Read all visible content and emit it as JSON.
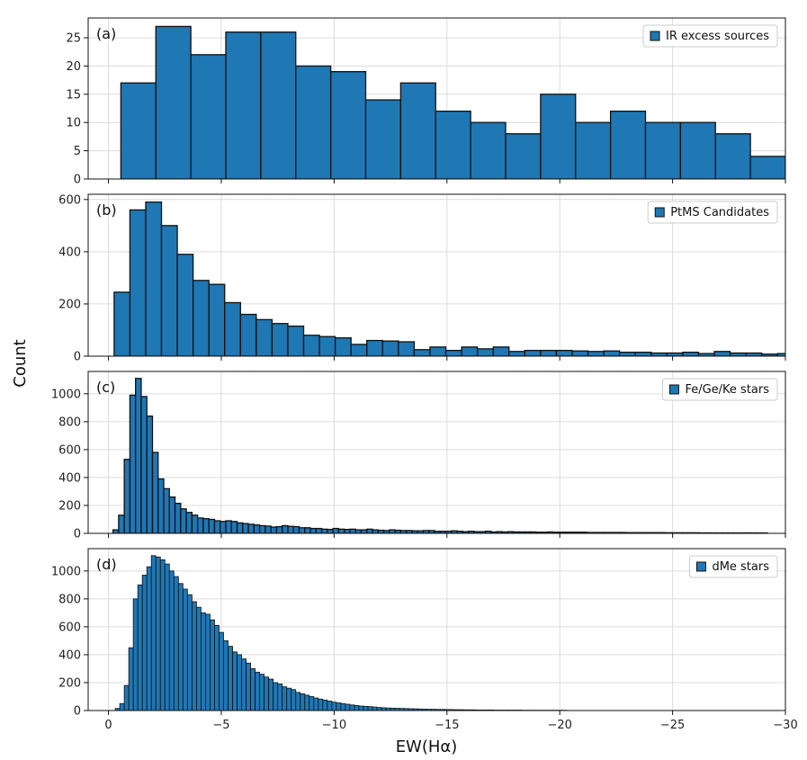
{
  "chart_data": {
    "type": "bar",
    "figure_xlabel": "EW(Hα)",
    "figure_ylabel": "Count",
    "bar_color": "#1f77b4",
    "edge_color": "#111111",
    "grid": true,
    "shared_x": {
      "xlim": [
        0.9,
        -30.0
      ],
      "ticks": [
        0,
        -5,
        -10,
        -15,
        -20,
        -25,
        -30
      ],
      "tick_labels": [
        "0",
        "−5",
        "−10",
        "−15",
        "−20",
        "−25",
        "−30"
      ]
    },
    "panels": [
      {
        "id": "a",
        "label": "(a)",
        "legend": "IR excess sources",
        "legend_position": "top-right",
        "ylim": [
          0,
          28.5
        ],
        "yticks": [
          0,
          5,
          10,
          15,
          20,
          25
        ],
        "bin_start": -0.55,
        "bin_width": -1.55,
        "values": [
          17,
          27,
          22,
          26,
          26,
          20,
          19,
          14,
          17,
          12,
          10,
          8,
          15,
          10,
          12,
          10,
          10,
          8,
          4
        ]
      },
      {
        "id": "b",
        "label": "(b)",
        "legend": "PtMS Candidates",
        "legend_position": "top-right",
        "ylim": [
          0,
          620
        ],
        "yticks": [
          0,
          200,
          400,
          600
        ],
        "bin_start": -0.25,
        "bin_width": -0.7,
        "values": [
          245,
          560,
          590,
          500,
          390,
          290,
          275,
          205,
          160,
          140,
          125,
          115,
          80,
          75,
          70,
          45,
          60,
          58,
          55,
          25,
          35,
          22,
          35,
          28,
          35,
          18,
          22,
          22,
          22,
          20,
          18,
          20,
          15,
          15,
          12,
          12,
          15,
          10,
          18,
          12,
          12,
          8,
          10
        ]
      },
      {
        "id": "c",
        "label": "(c)",
        "legend": "Fe/Ge/Ke stars",
        "legend_position": "top-right",
        "ylim": [
          0,
          1160
        ],
        "yticks": [
          0,
          200,
          400,
          600,
          800,
          1000
        ],
        "bin_start": -0.2,
        "bin_width": -0.25,
        "values": [
          25,
          130,
          530,
          990,
          1110,
          980,
          840,
          580,
          390,
          320,
          260,
          215,
          175,
          150,
          130,
          110,
          105,
          100,
          90,
          85,
          90,
          85,
          75,
          70,
          65,
          60,
          55,
          52,
          45,
          48,
          55,
          50,
          48,
          40,
          40,
          35,
          35,
          30,
          28,
          35,
          30,
          28,
          30,
          25,
          25,
          30,
          25,
          22,
          20,
          25,
          22,
          20,
          20,
          18,
          18,
          20,
          20,
          15,
          15,
          15,
          18,
          15,
          12,
          15,
          12,
          12,
          15,
          10,
          12,
          10,
          12,
          10,
          10,
          10,
          10,
          8,
          8,
          10,
          8,
          8,
          8,
          8,
          8,
          8,
          6,
          6,
          6,
          6,
          6,
          6,
          6,
          5,
          5,
          5,
          5,
          5,
          5,
          5,
          4,
          4,
          4,
          4,
          4,
          4,
          3,
          3,
          3,
          3,
          3,
          3,
          3,
          3,
          3,
          3,
          3,
          3
        ]
      },
      {
        "id": "d",
        "label": "(d)",
        "legend": "dMe stars",
        "legend_position": "top-right",
        "ylim": [
          0,
          1160
        ],
        "yticks": [
          0,
          200,
          400,
          600,
          800,
          1000
        ],
        "bin_start": -0.3,
        "bin_width": -0.2,
        "values": [
          15,
          50,
          180,
          450,
          800,
          900,
          970,
          1030,
          1110,
          1100,
          1080,
          1050,
          1000,
          960,
          910,
          870,
          830,
          780,
          740,
          700,
          690,
          650,
          610,
          560,
          500,
          460,
          420,
          400,
          370,
          340,
          300,
          275,
          260,
          240,
          225,
          200,
          190,
          170,
          160,
          150,
          130,
          120,
          110,
          100,
          90,
          82,
          75,
          68,
          60,
          55,
          50,
          45,
          40,
          36,
          32,
          30,
          28,
          25,
          22,
          20,
          18,
          17,
          16,
          15,
          14,
          13,
          12,
          11,
          10,
          9,
          9,
          8,
          8,
          7,
          7,
          6,
          6,
          5,
          5,
          5,
          4,
          4,
          4,
          4,
          3,
          3,
          3,
          3,
          3,
          3,
          2,
          2,
          2,
          2,
          2,
          2,
          2,
          2,
          2,
          2
        ]
      }
    ]
  }
}
